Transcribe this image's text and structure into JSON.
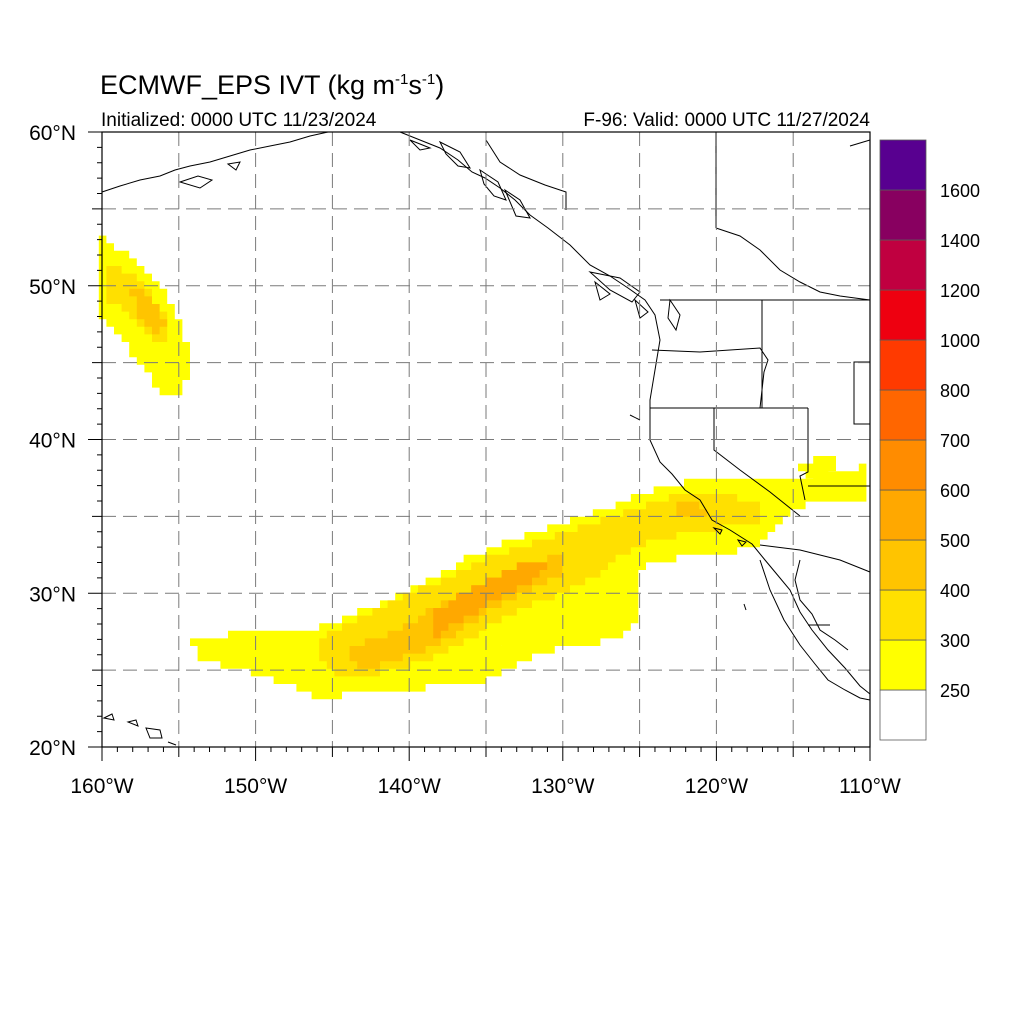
{
  "title": {
    "main": "ECMWF_EPS IVT (kg m",
    "exp1": "-1",
    "mid": "s",
    "exp2": "-1",
    "end": ")"
  },
  "subtitle_left": "Initialized: 0000 UTC 11/23/2024",
  "subtitle_right": "F-96: Valid: 0000 UTC 11/27/2024",
  "map": {
    "lon_range": [
      -160,
      -110
    ],
    "lat_range": [
      20,
      60
    ],
    "lon_ticks": [
      "160°W",
      "150°W",
      "140°W",
      "130°W",
      "120°W",
      "110°W"
    ],
    "lat_ticks": [
      "20°N",
      "30°N",
      "40°N",
      "50°N",
      "60°N"
    ],
    "gridlines": "dashed every 5 degrees"
  },
  "colorbar": {
    "labels": [
      "250",
      "300",
      "400",
      "500",
      "600",
      "700",
      "800",
      "1000",
      "1200",
      "1400",
      "1600"
    ],
    "colors": [
      "#ffffff",
      "#ffff00",
      "#ffe000",
      "#ffc400",
      "#ffa800",
      "#ff8c00",
      "#ff6600",
      "#ff3a00",
      "#ee0010",
      "#c00040",
      "#880060",
      "#580090"
    ]
  },
  "chart_data": {
    "type": "heatmap",
    "variable": "IVT",
    "units": "kg m-1 s-1",
    "features": [
      {
        "region": "atmospheric river, 24-37N from 154W to 112W",
        "ivt_range": [
          250,
          500
        ]
      },
      {
        "region": "plume near 43-53N, 160W-155W",
        "ivt_range": [
          250,
          400
        ]
      }
    ]
  }
}
